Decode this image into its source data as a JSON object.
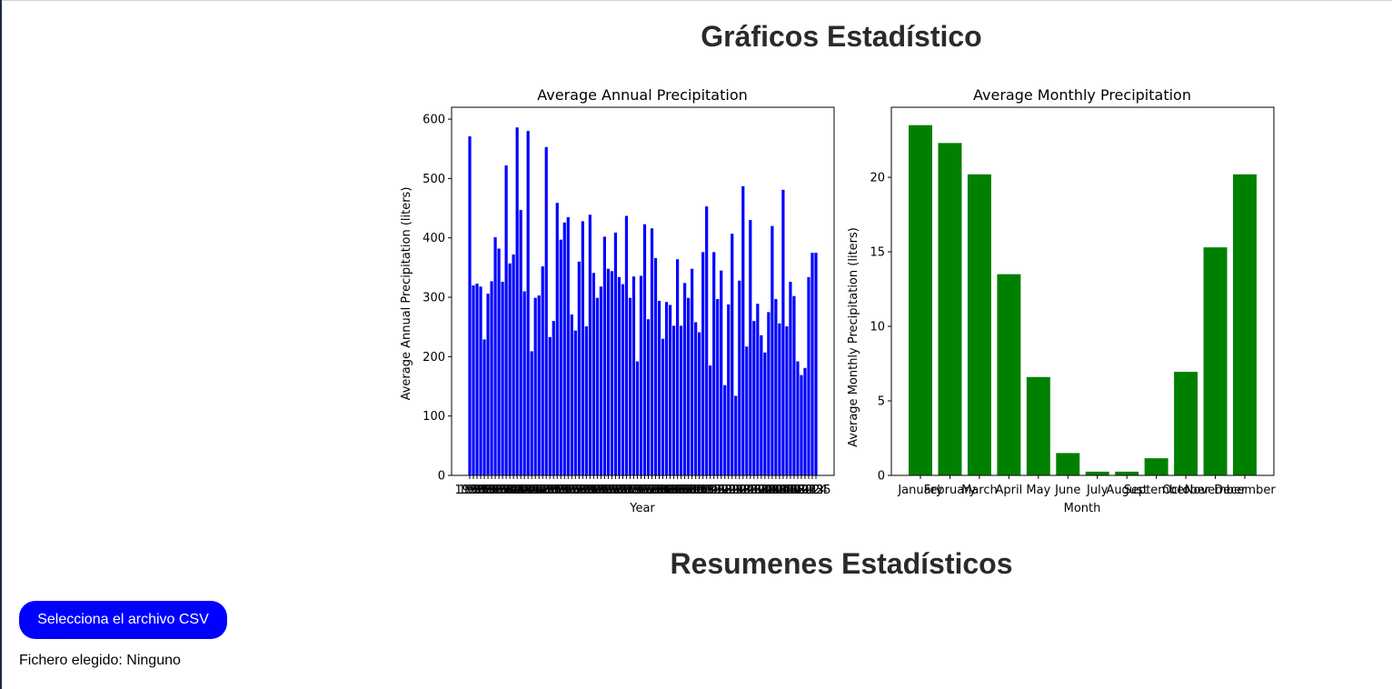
{
  "page": {
    "graficos_title": "Gráficos Estadístico",
    "resumenes_title": "Resumenes Estadísticos",
    "csv_button_label": "Selecciona el archivo CSV",
    "file_status_label": "Fichero elegido:",
    "file_status_value": "Ninguno"
  },
  "chart_data": [
    {
      "type": "bar",
      "title": "Average Annual Precipitation",
      "xlabel": "Year",
      "ylabel": "Average Annual Precipitation (liters)",
      "ylim": [
        0,
        620
      ],
      "yticks": [
        0,
        100,
        200,
        300,
        400,
        500,
        600
      ],
      "color": "#0000ff",
      "categories": [
        "1930",
        "1931",
        "1932",
        "1933",
        "1934",
        "1935",
        "1936",
        "1937",
        "1938",
        "1939",
        "1940",
        "1941",
        "1942",
        "1943",
        "1944",
        "1945",
        "1946",
        "1947",
        "1948",
        "1949",
        "1950",
        "1951",
        "1952",
        "1953",
        "1954",
        "1955",
        "1956",
        "1957",
        "1958",
        "1959",
        "1960",
        "1961",
        "1962",
        "1963",
        "1964",
        "1965",
        "1966",
        "1967",
        "1968",
        "1969",
        "1970",
        "1971",
        "1972",
        "1973",
        "1974",
        "1975",
        "1976",
        "1977",
        "1978",
        "1979",
        "1980",
        "1981",
        "1982",
        "1983",
        "1984",
        "1985",
        "1986",
        "1987",
        "1988",
        "1989",
        "1990",
        "1991",
        "1992",
        "1993",
        "1994",
        "1995",
        "1996",
        "1997",
        "1998",
        "1999",
        "2000",
        "2001",
        "2002",
        "2003",
        "2004",
        "2005",
        "2006",
        "2007",
        "2008",
        "2009",
        "2010",
        "2011",
        "2012",
        "2013",
        "2014",
        "2015",
        "2016",
        "2017",
        "2018",
        "2019",
        "2020",
        "2021",
        "2022",
        "2023",
        "2024",
        "2025"
      ],
      "values": [
        571,
        320,
        323,
        318,
        229,
        306,
        327,
        401,
        382,
        326,
        522,
        357,
        372,
        586,
        447,
        310,
        580,
        209,
        299,
        303,
        352,
        553,
        233,
        260,
        459,
        397,
        426,
        435,
        271,
        244,
        360,
        428,
        251,
        439,
        341,
        299,
        318,
        402,
        348,
        344,
        409,
        334,
        322,
        437,
        299,
        335,
        192,
        336,
        423,
        263,
        416,
        366,
        294,
        230,
        292,
        287,
        252,
        364,
        252,
        324,
        299,
        348,
        258,
        241,
        376,
        453,
        185,
        376,
        297,
        345,
        152,
        288,
        407,
        134,
        328,
        487,
        217,
        430,
        260,
        289,
        236,
        207,
        275,
        420,
        297,
        256,
        481,
        251,
        326,
        302,
        192,
        169,
        181,
        334,
        375,
        375
      ]
    },
    {
      "type": "bar",
      "title": "Average Monthly Precipitation",
      "xlabel": "Month",
      "ylabel": "Average Monthly Precipitation (liters)",
      "ylim": [
        0,
        24.7
      ],
      "yticks": [
        0,
        5,
        10,
        15,
        20
      ],
      "color": "#008000",
      "categories": [
        "January",
        "February",
        "March",
        "April",
        "May",
        "June",
        "July",
        "August",
        "September",
        "October",
        "November",
        "December"
      ],
      "values": [
        23.5,
        22.3,
        20.2,
        13.5,
        6.6,
        1.5,
        0.25,
        0.25,
        1.15,
        6.95,
        15.3,
        20.2
      ]
    }
  ]
}
